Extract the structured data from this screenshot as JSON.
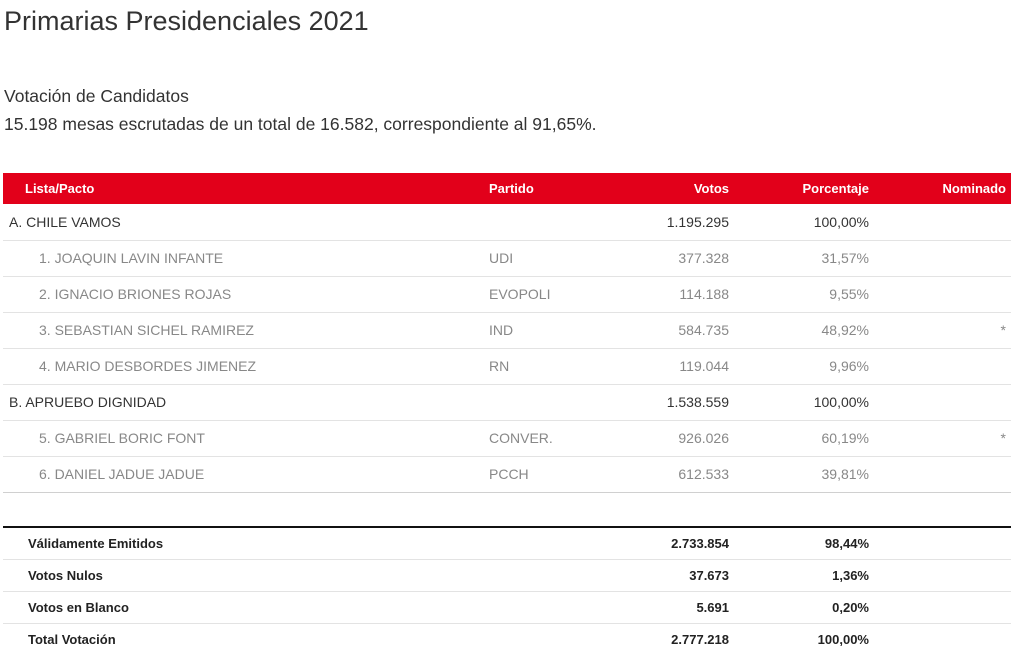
{
  "page": {
    "title": "Primarias Presidenciales 2021",
    "subtitle": "Votación de Candidatos",
    "summary": "15.198 mesas escrutadas de un total de 16.582, correspondiente al 91,65%."
  },
  "colors": {
    "header_bg": "#e2001a",
    "header_text": "#ffffff"
  },
  "table": {
    "headers": {
      "lista": "Lista/Pacto",
      "partido": "Partido",
      "votos": "Votos",
      "porcentaje": "Porcentaje",
      "nominado": "Nominado"
    },
    "rows": [
      {
        "name": "A. CHILE VAMOS",
        "party": "",
        "votes": "1.195.295",
        "pct": "100,00%",
        "nominado": ""
      },
      {
        "name": "1. JOAQUIN LAVIN INFANTE",
        "party": "UDI",
        "votes": "377.328",
        "pct": "31,57%",
        "nominado": ""
      },
      {
        "name": "2. IGNACIO BRIONES ROJAS",
        "party": "EVOPOLI",
        "votes": "114.188",
        "pct": "9,55%",
        "nominado": ""
      },
      {
        "name": "3. SEBASTIAN SICHEL RAMIREZ",
        "party": "IND",
        "votes": "584.735",
        "pct": "48,92%",
        "nominado": "*"
      },
      {
        "name": "4. MARIO DESBORDES JIMENEZ",
        "party": "RN",
        "votes": "119.044",
        "pct": "9,96%",
        "nominado": ""
      },
      {
        "name": "B. APRUEBO DIGNIDAD",
        "party": "",
        "votes": "1.538.559",
        "pct": "100,00%",
        "nominado": ""
      },
      {
        "name": "5. GABRIEL BORIC FONT",
        "party": "CONVER.",
        "votes": "926.026",
        "pct": "60,19%",
        "nominado": "*"
      },
      {
        "name": "6. DANIEL JADUE JADUE",
        "party": "PCCH",
        "votes": "612.533",
        "pct": "39,81%",
        "nominado": ""
      }
    ]
  },
  "totals": [
    {
      "label": "Válidamente Emitidos",
      "votes": "2.733.854",
      "pct": "98,44%"
    },
    {
      "label": "Votos Nulos",
      "votes": "37.673",
      "pct": "1,36%"
    },
    {
      "label": "Votos en Blanco",
      "votes": "5.691",
      "pct": "0,20%"
    },
    {
      "label": "Total Votación",
      "votes": "2.777.218",
      "pct": "100,00%"
    }
  ]
}
